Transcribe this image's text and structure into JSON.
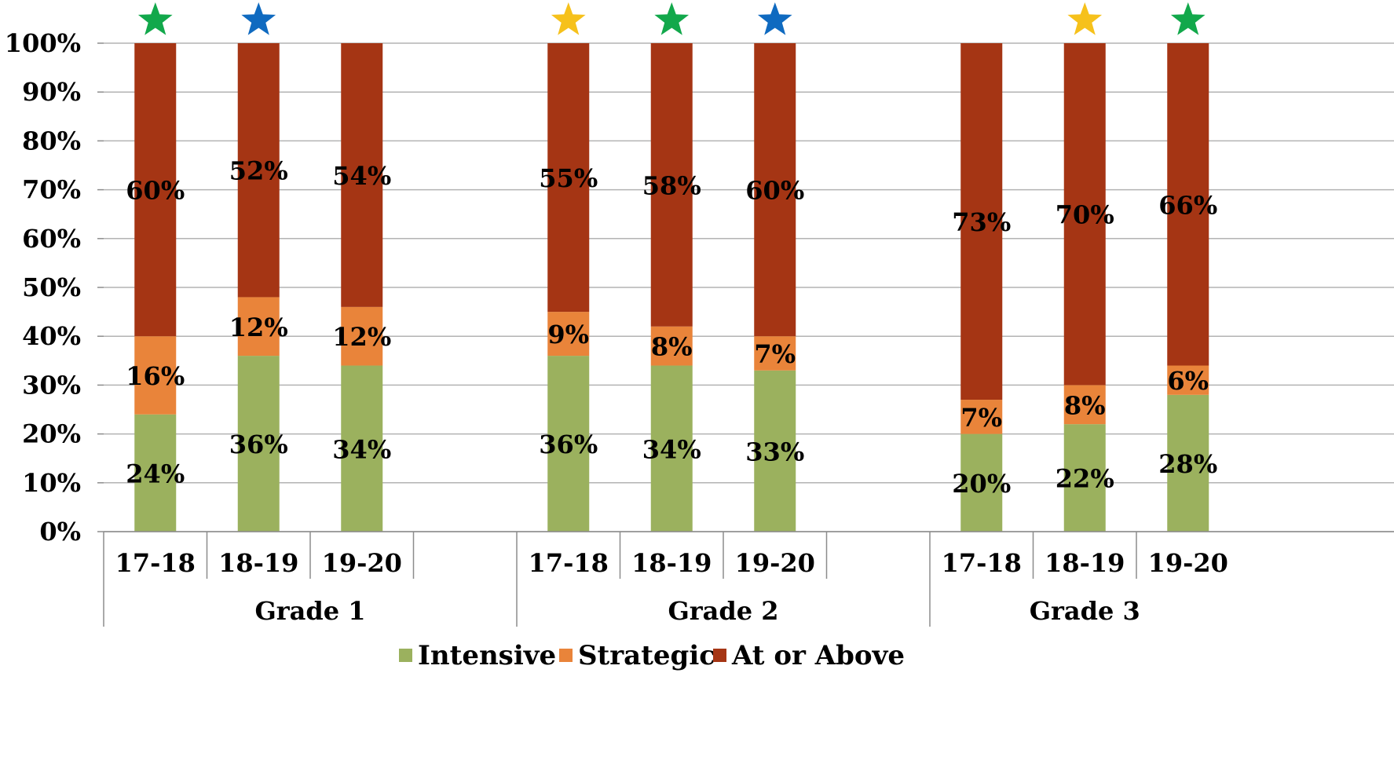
{
  "chart_data": {
    "type": "bar",
    "stacked": true,
    "ylim": [
      0,
      100
    ],
    "yticks": [
      "0%",
      "10%",
      "20%",
      "30%",
      "40%",
      "50%",
      "60%",
      "70%",
      "80%",
      "90%",
      "100%"
    ],
    "grid": true,
    "legend_position": "bottom",
    "groups": [
      "Grade 1",
      "Grade 2",
      "Grade 3"
    ],
    "categories": [
      "17-18",
      "18-19",
      "19-20"
    ],
    "series": [
      {
        "name": "Intensive",
        "color": "#9BB15E",
        "values": [
          [
            24,
            36,
            34
          ],
          [
            36,
            34,
            33
          ],
          [
            20,
            22,
            28
          ]
        ],
        "labels": [
          [
            "24%",
            "36%",
            "34%"
          ],
          [
            "36%",
            "34%",
            "33%"
          ],
          [
            "20%",
            "22%",
            "28%"
          ]
        ]
      },
      {
        "name": "Strategic",
        "color": "#E9843A",
        "values": [
          [
            16,
            12,
            12
          ],
          [
            9,
            8,
            7
          ],
          [
            7,
            8,
            6
          ]
        ],
        "labels": [
          [
            "16%",
            "12%",
            "12%"
          ],
          [
            "9%",
            "8%",
            "7%"
          ],
          [
            "7%",
            "8%",
            "6%"
          ]
        ]
      },
      {
        "name": "At or Above",
        "color": "#A53514",
        "values": [
          [
            60,
            52,
            54
          ],
          [
            55,
            58,
            60
          ],
          [
            73,
            70,
            66
          ]
        ],
        "labels": [
          [
            "60%",
            "52%",
            "54%"
          ],
          [
            "55%",
            "58%",
            "60%"
          ],
          [
            "73%",
            "70%",
            "66%"
          ]
        ]
      }
    ],
    "star_markers": [
      [
        "green",
        "blue",
        null
      ],
      [
        "yellow",
        "green",
        "blue"
      ],
      [
        null,
        "yellow",
        "green"
      ]
    ],
    "star_colors": {
      "green": "#12A84B",
      "blue": "#0F6AC0",
      "yellow": "#F6C11B"
    }
  }
}
